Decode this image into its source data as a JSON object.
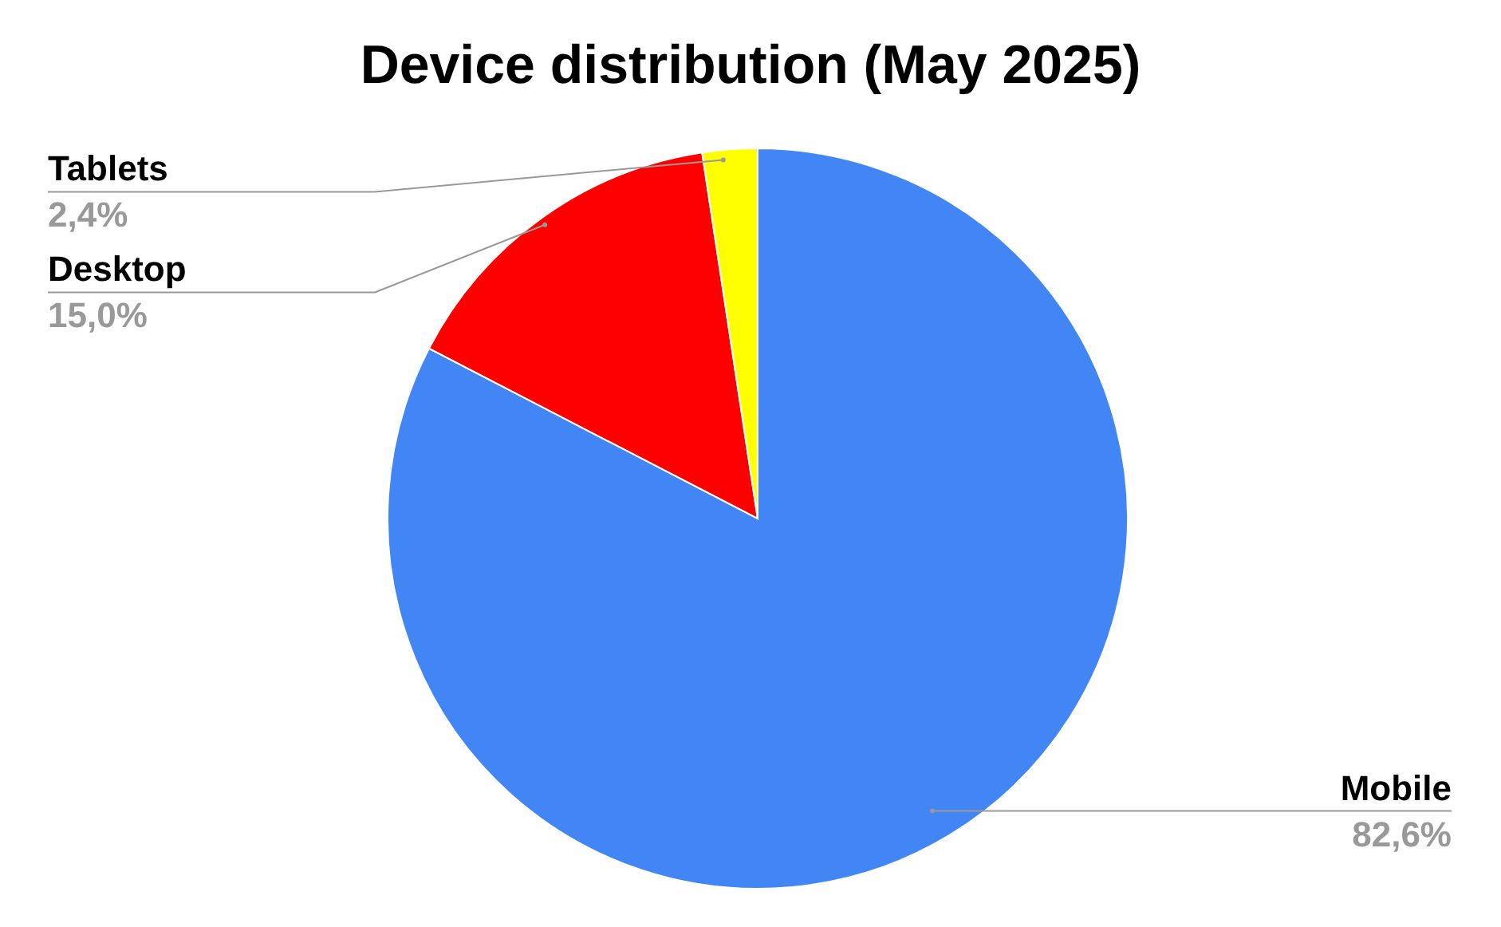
{
  "chart_data": {
    "type": "pie",
    "title": "Device distribution (May 2025)",
    "categories": [
      "Mobile",
      "Desktop",
      "Tablets"
    ],
    "values": [
      82.6,
      15.0,
      2.4
    ],
    "colors": [
      "#4285f4",
      "#ff0000",
      "#ffff00"
    ],
    "value_labels": [
      "82,6%",
      "15,0%",
      "2,4%"
    ],
    "legend": false
  }
}
